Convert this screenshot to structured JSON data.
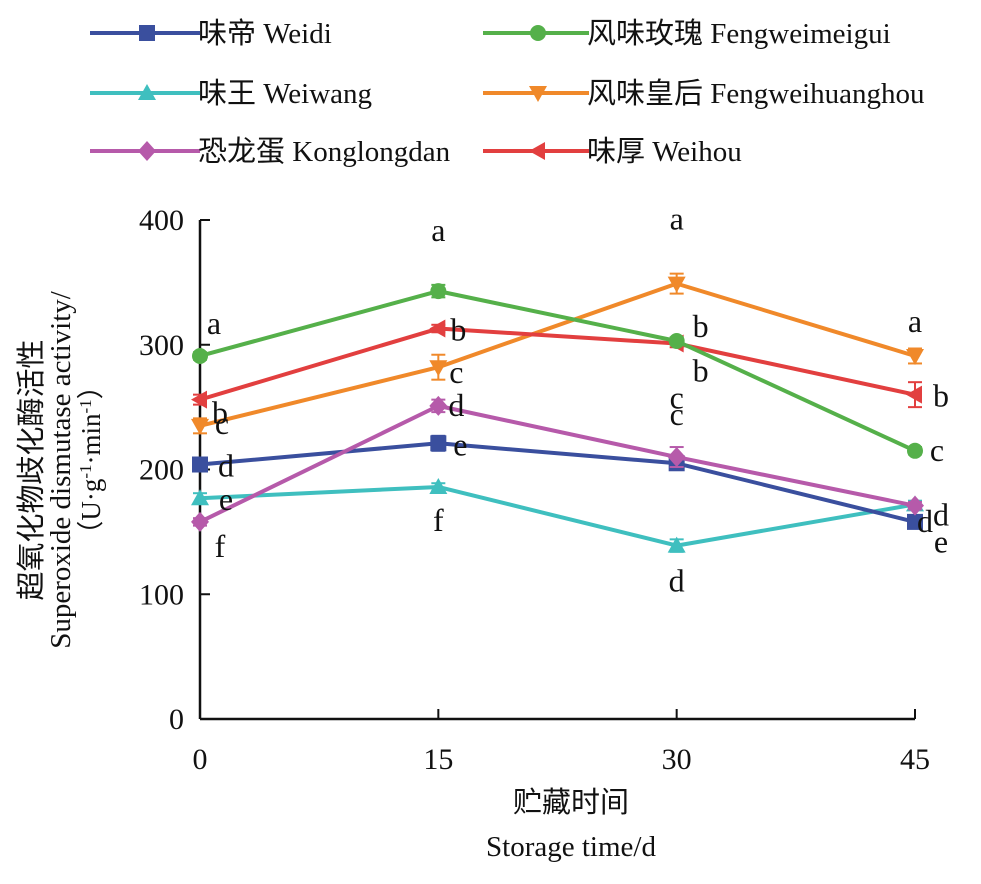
{
  "chart_data": {
    "type": "line",
    "title": "",
    "x": [
      0,
      15,
      30,
      45
    ],
    "xlim": [
      0,
      45
    ],
    "ylim": [
      0,
      400
    ],
    "xticks": [
      "0",
      "15",
      "30",
      "45"
    ],
    "yticks": [
      "0",
      "100",
      "200",
      "300",
      "400"
    ],
    "ytick_values": [
      0,
      100,
      200,
      300,
      400
    ],
    "xlabel_cn": "贮藏时间",
    "xlabel_en": "Storage time/d",
    "ylabel_cn": "超氧化物歧化酶活性",
    "ylabel_en": "Superoxide dismutase activity/",
    "ylabel_unit_open": "（U·g",
    "ylabel_unit_exp1": "-1",
    "ylabel_unit_mid": "·min",
    "ylabel_unit_exp2": "-1",
    "ylabel_unit_close": "）",
    "legend_position": "top",
    "series": [
      {
        "name": "味帝 Weidi",
        "color": "#3a4f9e",
        "marker": "square",
        "values": [
          204,
          221,
          205,
          158
        ],
        "errors": [
          4,
          6,
          4,
          4
        ],
        "letters": [
          "d",
          "e",
          "c",
          "d"
        ]
      },
      {
        "name": "风味玫瑰 Fengweimeigui",
        "color": "#55b04a",
        "marker": "circle",
        "values": [
          291,
          343,
          303,
          215
        ],
        "errors": [
          3,
          5,
          3,
          3
        ],
        "letters": [
          "a",
          "a",
          "b",
          "c"
        ]
      },
      {
        "name": "味王 Weiwang",
        "color": "#3fbfbf",
        "marker": "triangle-up",
        "values": [
          177,
          186,
          139,
          172
        ],
        "errors": [
          4,
          3,
          5,
          3
        ],
        "letters": [
          "e",
          "f",
          "d",
          "e"
        ]
      },
      {
        "name": "风味皇后 Fengweihuanghou",
        "color": "#f0892a",
        "marker": "triangle-down",
        "values": [
          235,
          282,
          349,
          291
        ],
        "errors": [
          6,
          10,
          8,
          6
        ],
        "letters": [
          "c",
          "c",
          "a",
          "a"
        ]
      },
      {
        "name": "恐龙蛋 Konglongdan",
        "color": "#b65aaa",
        "marker": "diamond",
        "values": [
          158,
          251,
          210,
          171
        ],
        "errors": [
          3,
          5,
          8,
          3
        ],
        "letters": [
          "f",
          "d",
          "c",
          "d"
        ]
      },
      {
        "name": "味厚 Weihou",
        "color": "#e23f3f",
        "marker": "triangle-left",
        "values": [
          256,
          313,
          301,
          260
        ],
        "errors": [
          4,
          3,
          3,
          10
        ],
        "letters": [
          "b",
          "b",
          "b",
          "b"
        ]
      }
    ]
  }
}
